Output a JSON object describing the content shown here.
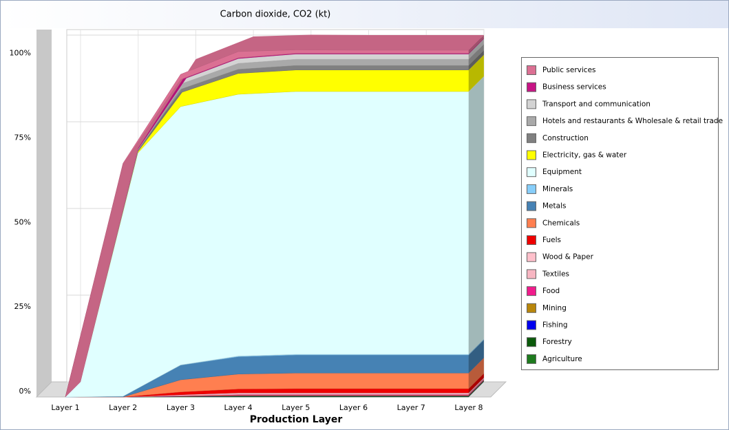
{
  "chart_data": {
    "type": "stacked-area-3d",
    "title": "Carbon dioxide, CO2 (kt)",
    "x_label": "Production Layer",
    "categories": [
      "Layer 1",
      "Layer 2",
      "Layer 3",
      "Layer 4",
      "Layer 5",
      "Layer 6",
      "Layer 7",
      "Layer 8"
    ],
    "ylim": [
      0,
      100
    ],
    "yticks": [
      {
        "value": 0,
        "label": "0%"
      },
      {
        "value": 25,
        "label": "25%"
      },
      {
        "value": 50,
        "label": "50%"
      },
      {
        "value": 75,
        "label": "75%"
      },
      {
        "value": 100,
        "label": "100%"
      }
    ],
    "grid": true,
    "legend": "right",
    "series": [
      {
        "name": "Agriculture",
        "color": "#1e7b1e",
        "values": [
          0,
          0,
          0.05,
          0.1,
          0.1,
          0.1,
          0.1,
          0.1
        ]
      },
      {
        "name": "Forestry",
        "color": "#0b5a0b",
        "values": [
          0,
          0,
          0.05,
          0.1,
          0.1,
          0.1,
          0.1,
          0.1
        ]
      },
      {
        "name": "Fishing",
        "color": "#0000ee",
        "values": [
          0,
          0,
          0.05,
          0.1,
          0.1,
          0.1,
          0.1,
          0.1
        ]
      },
      {
        "name": "Mining",
        "color": "#b8860b",
        "values": [
          0,
          0,
          0.1,
          0.2,
          0.2,
          0.2,
          0.2,
          0.2
        ]
      },
      {
        "name": "Food",
        "color": "#f01c8c",
        "values": [
          0,
          0,
          0.1,
          0.2,
          0.2,
          0.2,
          0.2,
          0.2
        ]
      },
      {
        "name": "Textiles",
        "color": "#f7b6c2",
        "values": [
          0,
          0,
          0.1,
          0.2,
          0.2,
          0.2,
          0.2,
          0.2
        ]
      },
      {
        "name": "Wood & Paper",
        "color": "#ffc0cb",
        "values": [
          0,
          0,
          0.2,
          0.3,
          0.3,
          0.3,
          0.3,
          0.3
        ]
      },
      {
        "name": "Fuels",
        "color": "#ee0000",
        "values": [
          0,
          0,
          0.8,
          1.1,
          1.2,
          1.2,
          1.2,
          1.2
        ]
      },
      {
        "name": "Chemicals",
        "color": "#ff7f50",
        "values": [
          0,
          0,
          3.5,
          4.3,
          4.5,
          4.5,
          4.5,
          4.5
        ]
      },
      {
        "name": "Metals",
        "color": "#4682b4",
        "values": [
          0,
          0.2,
          4.2,
          5.0,
          5.2,
          5.2,
          5.2,
          5.2
        ]
      },
      {
        "name": "Minerals",
        "color": "#87cefa",
        "values": [
          0,
          0,
          0.1,
          0.2,
          0.2,
          0.2,
          0.2,
          0.2
        ]
      },
      {
        "name": "Equipment",
        "color": "#e0ffff",
        "values": [
          0,
          65.5,
          74.5,
          75.5,
          75.8,
          75.8,
          75.8,
          75.8
        ]
      },
      {
        "name": "Electricity, gas & water",
        "color": "#ffff00",
        "values": [
          0,
          0.5,
          4,
          6,
          6.2,
          6.2,
          6.2,
          6.2
        ]
      },
      {
        "name": "Construction",
        "color": "#808080",
        "values": [
          0,
          0.2,
          1,
          1.2,
          1.3,
          1.3,
          1.3,
          1.3
        ]
      },
      {
        "name": "Hotels and restaurants & Wholesale & retail trade",
        "color": "#a9a9a9",
        "values": [
          0,
          0.4,
          1.5,
          1.7,
          1.8,
          1.8,
          1.8,
          1.8
        ]
      },
      {
        "name": "Transport and communication",
        "color": "#d3d3d3",
        "values": [
          0,
          0.2,
          1.1,
          1.4,
          1.5,
          1.5,
          1.5,
          1.5
        ]
      },
      {
        "name": "Business services",
        "color": "#c71585",
        "values": [
          0,
          0.1,
          0.2,
          0.2,
          0.2,
          0.2,
          0.2,
          0.2
        ]
      },
      {
        "name": "Public services",
        "color": "#db7093",
        "values": [
          0,
          0.3,
          1.5,
          1.8,
          1.0,
          0.9,
          0.9,
          0.9
        ]
      }
    ]
  }
}
